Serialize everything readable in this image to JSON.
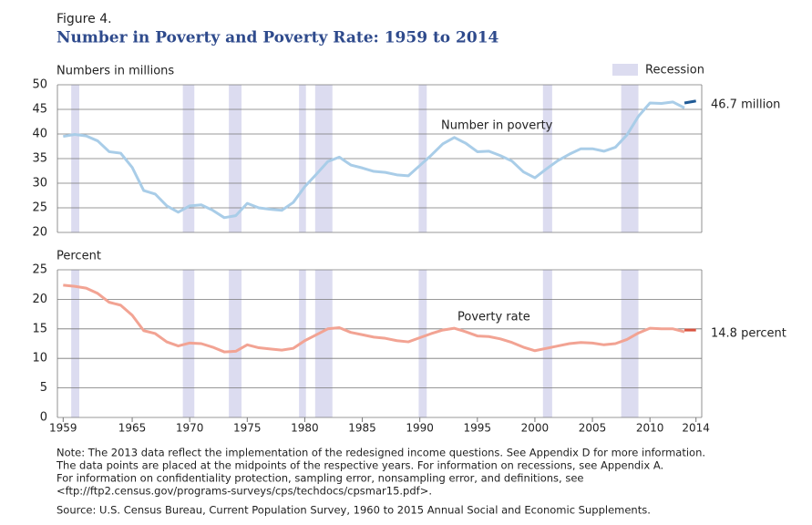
{
  "header": {
    "figure": "Figure 4.",
    "title": "Number in Poverty and Poverty Rate: 1959 to 2014"
  },
  "recession": {
    "label": "Recession",
    "color": "#dcdcf0",
    "periods": [
      [
        1959.7,
        1960.4
      ],
      [
        1969.4,
        1970.4
      ],
      [
        1973.4,
        1974.5
      ],
      [
        1979.5,
        1980.1
      ],
      [
        1980.9,
        1982.4
      ],
      [
        1989.9,
        1990.6
      ],
      [
        2000.7,
        2001.5
      ],
      [
        2007.5,
        2009.0
      ]
    ]
  },
  "chart_data": [
    {
      "type": "line",
      "ylabel": "Numbers in millions",
      "series_label": "Number in poverty",
      "end_label": "46.7 million",
      "x": [
        1959,
        1960,
        1961,
        1962,
        1963,
        1964,
        1965,
        1966,
        1967,
        1968,
        1969,
        1970,
        1971,
        1972,
        1973,
        1974,
        1975,
        1976,
        1977,
        1978,
        1979,
        1980,
        1981,
        1982,
        1983,
        1984,
        1985,
        1986,
        1987,
        1988,
        1989,
        1990,
        1991,
        1992,
        1993,
        1994,
        1995,
        1996,
        1997,
        1998,
        1999,
        2000,
        2001,
        2002,
        2003,
        2004,
        2005,
        2006,
        2007,
        2008,
        2009,
        2010,
        2011,
        2012,
        2013,
        2014
      ],
      "series": [
        {
          "color": "#a9cde8",
          "values": [
            39.5,
            39.9,
            39.6,
            38.6,
            36.4,
            36.1,
            33.2,
            28.5,
            27.8,
            25.4,
            24.1,
            25.4,
            25.6,
            24.5,
            23.0,
            23.4,
            25.9,
            25.0,
            24.7,
            24.5,
            26.1,
            29.3,
            31.8,
            34.4,
            35.3,
            33.7,
            33.1,
            32.4,
            32.2,
            31.7,
            31.5,
            33.6,
            35.7,
            38.0,
            39.3,
            38.1,
            36.4,
            36.5,
            35.6,
            34.5,
            32.3,
            31.1,
            32.9,
            34.6,
            35.9,
            37.0,
            37.0,
            36.5,
            37.3,
            39.8,
            43.6,
            46.3,
            46.2,
            46.5,
            45.3,
            null
          ]
        },
        {
          "color": "#1f5a96",
          "values": [
            null,
            null,
            null,
            null,
            null,
            null,
            null,
            null,
            null,
            null,
            null,
            null,
            null,
            null,
            null,
            null,
            null,
            null,
            null,
            null,
            null,
            null,
            null,
            null,
            null,
            null,
            null,
            null,
            null,
            null,
            null,
            null,
            null,
            null,
            null,
            null,
            null,
            null,
            null,
            null,
            null,
            null,
            null,
            null,
            null,
            null,
            null,
            null,
            null,
            null,
            null,
            null,
            null,
            null,
            46.3,
            46.7
          ]
        }
      ],
      "xlim": [
        1958.5,
        2014.5
      ],
      "ylim": [
        20,
        50
      ],
      "yticks": [
        20,
        25,
        30,
        35,
        40,
        45,
        50
      ],
      "grid": true
    },
    {
      "type": "line",
      "ylabel": "Percent",
      "series_label": "Poverty rate",
      "end_label": "14.8 percent",
      "x": [
        1959,
        1960,
        1961,
        1962,
        1963,
        1964,
        1965,
        1966,
        1967,
        1968,
        1969,
        1970,
        1971,
        1972,
        1973,
        1974,
        1975,
        1976,
        1977,
        1978,
        1979,
        1980,
        1981,
        1982,
        1983,
        1984,
        1985,
        1986,
        1987,
        1988,
        1989,
        1990,
        1991,
        1992,
        1993,
        1994,
        1995,
        1996,
        1997,
        1998,
        1999,
        2000,
        2001,
        2002,
        2003,
        2004,
        2005,
        2006,
        2007,
        2008,
        2009,
        2010,
        2011,
        2012,
        2013,
        2014
      ],
      "series": [
        {
          "color": "#f2a393",
          "values": [
            22.4,
            22.2,
            21.9,
            21.0,
            19.5,
            19.0,
            17.3,
            14.7,
            14.2,
            12.8,
            12.1,
            12.6,
            12.5,
            11.9,
            11.1,
            11.2,
            12.3,
            11.8,
            11.6,
            11.4,
            11.7,
            13.0,
            14.0,
            15.0,
            15.2,
            14.4,
            14.0,
            13.6,
            13.4,
            13.0,
            12.8,
            13.5,
            14.2,
            14.8,
            15.1,
            14.5,
            13.8,
            13.7,
            13.3,
            12.7,
            11.9,
            11.3,
            11.7,
            12.1,
            12.5,
            12.7,
            12.6,
            12.3,
            12.5,
            13.2,
            14.3,
            15.1,
            15.0,
            15.0,
            14.5,
            null
          ]
        },
        {
          "color": "#d9533f",
          "values": [
            null,
            null,
            null,
            null,
            null,
            null,
            null,
            null,
            null,
            null,
            null,
            null,
            null,
            null,
            null,
            null,
            null,
            null,
            null,
            null,
            null,
            null,
            null,
            null,
            null,
            null,
            null,
            null,
            null,
            null,
            null,
            null,
            null,
            null,
            null,
            null,
            null,
            null,
            null,
            null,
            null,
            null,
            null,
            null,
            null,
            null,
            null,
            null,
            null,
            null,
            null,
            null,
            null,
            null,
            14.8,
            14.8
          ]
        }
      ],
      "xlim": [
        1958.5,
        2014.5
      ],
      "xticks": [
        1959,
        1965,
        1970,
        1975,
        1980,
        1985,
        1990,
        1995,
        2000,
        2005,
        2010,
        2014
      ],
      "ylim": [
        0,
        25
      ],
      "yticks": [
        0,
        5,
        10,
        15,
        20,
        25
      ],
      "grid": true
    }
  ],
  "notes": [
    "Note: The 2013 data reflect the implementation of the redesigned income questions. See Appendix D for more information.",
    "The data points are placed at the midpoints of the respective years. For information on recessions, see Appendix A.",
    "For information on confidentiality protection, sampling error, nonsampling error, and definitions, see",
    "<ftp://ftp2.census.gov/programs-surveys/cps/techdocs/cpsmar15.pdf>."
  ],
  "source": "Source: U.S. Census Bureau, Current Population Survey, 1960 to 2015 Annual Social and Economic Supplements."
}
